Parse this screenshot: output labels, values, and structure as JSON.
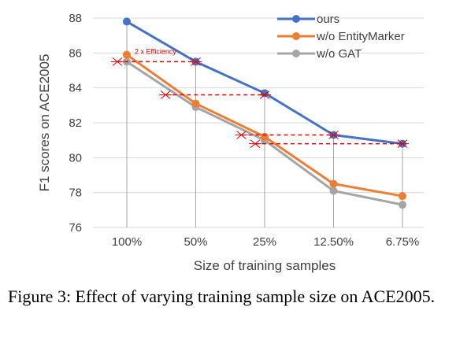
{
  "chart_data": {
    "type": "line",
    "categories": [
      "100%",
      "50%",
      "25%",
      "12.50%",
      "6.75%"
    ],
    "series": [
      {
        "name": "ours",
        "color": "#4472c4",
        "values": [
          87.8,
          85.5,
          83.7,
          81.3,
          80.8
        ]
      },
      {
        "name": "w/o EntityMarker",
        "color": "#ed7d31",
        "values": [
          85.9,
          83.1,
          81.2,
          78.5,
          77.8
        ]
      },
      {
        "name": "w/o GAT",
        "color": "#a5a5a5",
        "values": [
          85.5,
          82.9,
          81.0,
          78.1,
          77.3
        ]
      }
    ],
    "xlabel": "Size of training samples",
    "ylabel": "F1 scores on ACE2005",
    "ylim": [
      76,
      88
    ],
    "yticks": [
      76,
      78,
      80,
      82,
      84,
      86,
      88
    ],
    "grid": true,
    "legend_position": "top-right",
    "annotations": [
      {
        "text": "2 x Efficiency",
        "color": "#e00000"
      }
    ],
    "efficiency_lines": [
      {
        "y": 85.5,
        "x_from": 0,
        "x_to": 1
      },
      {
        "y": 83.6,
        "x_from": 0.7,
        "x_to": 2
      },
      {
        "y": 81.3,
        "x_from": 1.8,
        "x_to": 3
      },
      {
        "y": 80.8,
        "x_from": 2,
        "x_to": 4
      }
    ]
  },
  "caption": {
    "text": "Figure 3:  Effect of varying training sample size on ACE2005."
  }
}
